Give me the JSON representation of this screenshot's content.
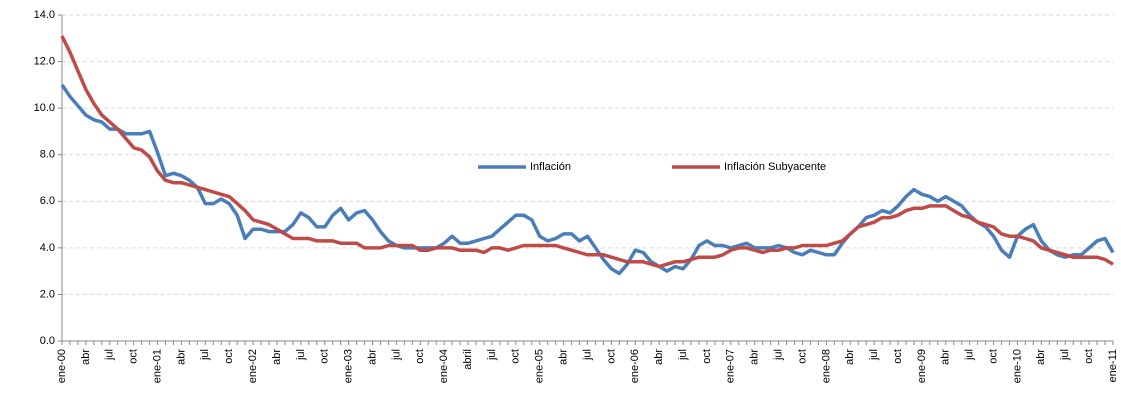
{
  "chart_data": {
    "type": "line",
    "categories": [
      "ene-00",
      null,
      null,
      "abr",
      null,
      null,
      "jul",
      null,
      null,
      "oct",
      null,
      null,
      "ene-01",
      null,
      null,
      "abr",
      null,
      null,
      "jul",
      null,
      null,
      "oct",
      null,
      null,
      "ene-02",
      null,
      null,
      "abr",
      null,
      null,
      "jul",
      null,
      null,
      "oct",
      null,
      null,
      "ene-03",
      null,
      null,
      "abr",
      null,
      null,
      "jul",
      null,
      null,
      "oct",
      null,
      null,
      "ene-04",
      null,
      null,
      "abril",
      null,
      null,
      "jul",
      null,
      null,
      "oct",
      null,
      null,
      "ene-05",
      null,
      null,
      "abr",
      null,
      null,
      "jul",
      null,
      null,
      "oct",
      null,
      null,
      "ene-06",
      null,
      null,
      "abr",
      null,
      null,
      "jul",
      null,
      null,
      "oct",
      null,
      null,
      "ene-07",
      null,
      null,
      "abr",
      null,
      null,
      "jul",
      null,
      null,
      "oct",
      null,
      null,
      "ene-08",
      null,
      null,
      "abr",
      null,
      null,
      "jul",
      null,
      null,
      "oct",
      null,
      null,
      "ene-09",
      null,
      null,
      "abr",
      null,
      null,
      "jul",
      null,
      null,
      "oct",
      null,
      null,
      "ene-10",
      null,
      null,
      "abr",
      null,
      null,
      "jul",
      null,
      null,
      "oct",
      null,
      null,
      "ene-11"
    ],
    "series": [
      {
        "name": "Inflación",
        "color": "#4a7ebb",
        "values": [
          11.0,
          10.5,
          10.1,
          9.7,
          9.5,
          9.4,
          9.1,
          9.1,
          8.9,
          8.9,
          8.9,
          9.0,
          8.1,
          7.1,
          7.2,
          7.1,
          6.9,
          6.6,
          5.9,
          5.9,
          6.1,
          5.9,
          5.4,
          4.4,
          4.8,
          4.8,
          4.7,
          4.7,
          4.7,
          5.0,
          5.5,
          5.3,
          4.9,
          4.9,
          5.4,
          5.7,
          5.2,
          5.5,
          5.6,
          5.2,
          4.7,
          4.3,
          4.1,
          4.0,
          4.0,
          4.0,
          4.0,
          4.0,
          4.2,
          4.5,
          4.2,
          4.2,
          4.3,
          4.4,
          4.5,
          4.8,
          5.1,
          5.4,
          5.4,
          5.2,
          4.5,
          4.3,
          4.4,
          4.6,
          4.6,
          4.3,
          4.5,
          4.0,
          3.5,
          3.1,
          2.9,
          3.3,
          3.9,
          3.8,
          3.4,
          3.2,
          3.0,
          3.2,
          3.1,
          3.5,
          4.1,
          4.3,
          4.1,
          4.1,
          4.0,
          4.1,
          4.2,
          4.0,
          4.0,
          4.0,
          4.1,
          4.0,
          3.8,
          3.7,
          3.9,
          3.8,
          3.7,
          3.7,
          4.2,
          4.6,
          4.9,
          5.3,
          5.4,
          5.6,
          5.5,
          5.8,
          6.2,
          6.5,
          6.3,
          6.2,
          6.0,
          6.2,
          6.0,
          5.8,
          5.4,
          5.1,
          4.9,
          4.5,
          3.9,
          3.6,
          4.5,
          4.8,
          5.0,
          4.3,
          3.9,
          3.7,
          3.6,
          3.7,
          3.7,
          4.0,
          4.3,
          4.4,
          3.8
        ]
      },
      {
        "name": "Inflación Subyacente",
        "color": "#be4b48",
        "values": [
          13.1,
          12.4,
          11.6,
          10.8,
          10.2,
          9.7,
          9.4,
          9.1,
          8.7,
          8.3,
          8.2,
          7.9,
          7.3,
          6.9,
          6.8,
          6.8,
          6.7,
          6.6,
          6.5,
          6.4,
          6.3,
          6.2,
          5.9,
          5.6,
          5.2,
          5.1,
          5.0,
          4.8,
          4.6,
          4.4,
          4.4,
          4.4,
          4.3,
          4.3,
          4.3,
          4.2,
          4.2,
          4.2,
          4.0,
          4.0,
          4.0,
          4.1,
          4.1,
          4.1,
          4.1,
          3.9,
          3.9,
          4.0,
          4.0,
          4.0,
          3.9,
          3.9,
          3.9,
          3.8,
          4.0,
          4.0,
          3.9,
          4.0,
          4.1,
          4.1,
          4.1,
          4.1,
          4.1,
          4.0,
          3.9,
          3.8,
          3.7,
          3.7,
          3.7,
          3.6,
          3.5,
          3.4,
          3.4,
          3.4,
          3.3,
          3.2,
          3.3,
          3.4,
          3.4,
          3.5,
          3.6,
          3.6,
          3.6,
          3.7,
          3.9,
          4.0,
          4.0,
          3.9,
          3.8,
          3.9,
          3.9,
          4.0,
          4.0,
          4.1,
          4.1,
          4.1,
          4.1,
          4.2,
          4.3,
          4.6,
          4.9,
          5.0,
          5.1,
          5.3,
          5.3,
          5.4,
          5.6,
          5.7,
          5.7,
          5.8,
          5.8,
          5.8,
          5.6,
          5.4,
          5.3,
          5.1,
          5.0,
          4.9,
          4.6,
          4.5,
          4.5,
          4.4,
          4.3,
          4.0,
          3.9,
          3.8,
          3.7,
          3.6,
          3.6,
          3.6,
          3.6,
          3.5,
          3.3
        ]
      }
    ],
    "ylim": [
      0,
      14
    ],
    "yticks": [
      {
        "value": 0,
        "label": "0.0"
      },
      {
        "value": 2,
        "label": "2.0"
      },
      {
        "value": 4,
        "label": "4.0"
      },
      {
        "value": 6,
        "label": "6.0"
      },
      {
        "value": 8,
        "label": "8.0"
      },
      {
        "value": 10,
        "label": "10.0"
      },
      {
        "value": 12,
        "label": "12.0"
      },
      {
        "value": 14,
        "label": "14.0"
      }
    ],
    "grid": true
  }
}
